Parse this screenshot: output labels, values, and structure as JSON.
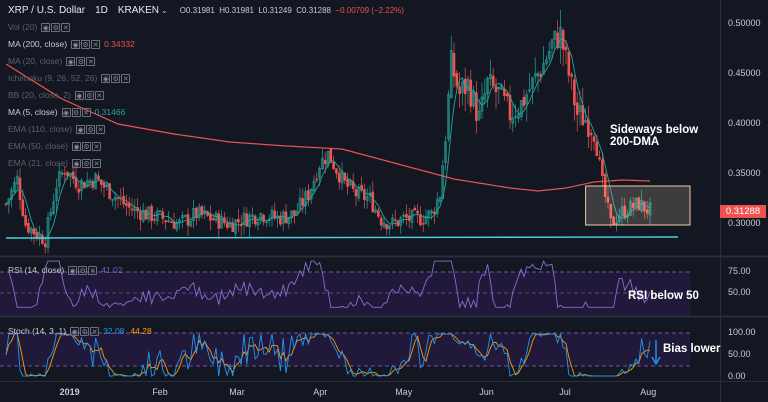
{
  "header": {
    "symbol": "XRP / U.S. Dollar",
    "interval": "1D",
    "exchange": "KRAKEN",
    "open": "O0.31981",
    "high": "H0.31981",
    "low": "L0.31249",
    "close": "C0.31288",
    "change": "−0.00709 (−2.22%)"
  },
  "indicators": [
    {
      "name": "Vol (20)",
      "value": "",
      "hidden": true
    },
    {
      "name": "MA (200, close)",
      "value": "0.34332",
      "value_color": "#ef5350",
      "hidden": false
    },
    {
      "name": "MA (20, close)",
      "value": "",
      "hidden": true
    },
    {
      "name": "Ichimoku (9, 26, 52, 26)",
      "value": "",
      "hidden": true
    },
    {
      "name": "BB (20, close, 2)",
      "value": "",
      "hidden": true
    },
    {
      "name": "MA (5, close)",
      "value": "0.31466",
      "value_color": "#26a69a",
      "hidden": false
    },
    {
      "name": "EMA (110, close)",
      "value": "",
      "hidden": true
    },
    {
      "name": "EMA (50, close)",
      "value": "",
      "hidden": true
    },
    {
      "name": "EMA (21, close)",
      "value": "",
      "hidden": true
    }
  ],
  "annotations": {
    "sideways": "Sideways below\n200-DMA",
    "rsi": "RSI below 50",
    "bias": "Bias lower"
  },
  "price_axis": {
    "ticks": [
      "0.50000",
      "0.45000",
      "0.40000",
      "0.35000",
      "0.30000"
    ],
    "last_price": "0.31288",
    "last_price_color": "#ef5350"
  },
  "rsi_pane": {
    "label": "RSI (14, close)",
    "value": "41.02",
    "ticks": [
      "75.00",
      "50.00"
    ]
  },
  "stoch_pane": {
    "label": "Stoch (14, 3, 1)",
    "k": "32.08",
    "k_color": "#2196f3",
    "d": "44.28",
    "d_color": "#ff9800",
    "ticks": [
      "100.00",
      "50.00",
      "0.00"
    ]
  },
  "time_axis": [
    "2019",
    "Feb",
    "Mar",
    "Apr",
    "May",
    "Jun",
    "Jul",
    "Aug"
  ],
  "chart_data": {
    "type": "candlestick",
    "ylim": [
      0.27,
      0.51
    ],
    "ma200_color": "#ef5350",
    "trendline_color": "#4dd0e1",
    "up_color": "#26a69a",
    "down_color": "#ef5350",
    "path": [
      [
        0,
        0.32
      ],
      [
        4,
        0.345
      ],
      [
        7,
        0.3
      ],
      [
        11,
        0.29
      ],
      [
        14,
        0.285
      ],
      [
        18,
        0.34
      ],
      [
        21,
        0.355
      ],
      [
        26,
        0.34
      ],
      [
        32,
        0.345
      ],
      [
        38,
        0.33
      ],
      [
        44,
        0.316
      ],
      [
        50,
        0.31
      ],
      [
        57,
        0.305
      ],
      [
        62,
        0.3
      ],
      [
        68,
        0.31
      ],
      [
        74,
        0.305
      ],
      [
        80,
        0.3
      ],
      [
        86,
        0.306
      ],
      [
        91,
        0.31
      ],
      [
        97,
        0.306
      ],
      [
        103,
        0.31
      ],
      [
        108,
        0.33
      ],
      [
        112,
        0.36
      ],
      [
        115,
        0.37
      ],
      [
        118,
        0.355
      ],
      [
        121,
        0.34
      ],
      [
        125,
        0.33
      ],
      [
        130,
        0.325
      ],
      [
        134,
        0.305
      ],
      [
        138,
        0.3
      ],
      [
        142,
        0.305
      ],
      [
        148,
        0.306
      ],
      [
        152,
        0.31
      ],
      [
        155,
        0.33
      ],
      [
        157,
        0.39
      ],
      [
        159,
        0.46
      ],
      [
        162,
        0.43
      ],
      [
        165,
        0.44
      ],
      [
        169,
        0.405
      ],
      [
        172,
        0.44
      ],
      [
        176,
        0.43
      ],
      [
        180,
        0.41
      ],
      [
        184,
        0.42
      ],
      [
        188,
        0.44
      ],
      [
        192,
        0.46
      ],
      [
        195,
        0.48
      ],
      [
        198,
        0.49
      ],
      [
        201,
        0.45
      ],
      [
        204,
        0.41
      ],
      [
        207,
        0.405
      ],
      [
        210,
        0.395
      ],
      [
        213,
        0.34
      ],
      [
        216,
        0.3
      ],
      [
        219,
        0.31
      ],
      [
        222,
        0.315
      ],
      [
        226,
        0.32
      ],
      [
        230,
        0.313
      ]
    ],
    "ma200": [
      [
        0,
        0.46
      ],
      [
        20,
        0.425
      ],
      [
        40,
        0.4
      ],
      [
        60,
        0.39
      ],
      [
        80,
        0.382
      ],
      [
        100,
        0.378
      ],
      [
        120,
        0.375
      ],
      [
        140,
        0.36
      ],
      [
        160,
        0.345
      ],
      [
        180,
        0.336
      ],
      [
        190,
        0.333
      ],
      [
        200,
        0.336
      ],
      [
        210,
        0.342
      ],
      [
        220,
        0.344
      ],
      [
        230,
        0.343
      ]
    ],
    "box": {
      "x0": 207,
      "x1": 246,
      "y0": 0.299,
      "y1": 0.338
    },
    "trendline": [
      [
        0,
        0.286
      ],
      [
        246,
        0.287
      ]
    ]
  }
}
